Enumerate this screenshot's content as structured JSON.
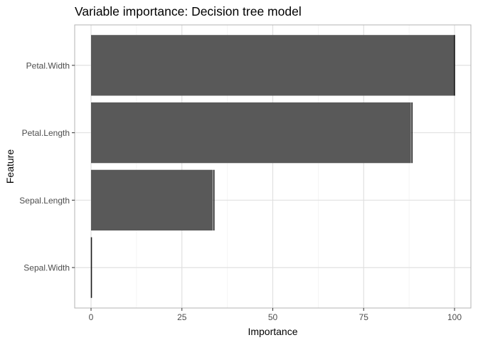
{
  "chart_data": {
    "type": "bar",
    "orientation": "horizontal",
    "title": "Variable importance: Decision tree model",
    "xlabel": "Importance",
    "ylabel": "Feature",
    "categories": [
      "Petal.Width",
      "Petal.Length",
      "Sepal.Length",
      "Sepal.Width"
    ],
    "values": [
      100,
      88,
      33.5,
      0
    ],
    "error_upper": [
      100,
      88.3,
      33.8,
      0.1
    ],
    "xlim": [
      -4.5,
      104.5
    ],
    "xticks": [
      0,
      25,
      50,
      75,
      100
    ],
    "xtick_labels": [
      "0",
      "25",
      "50",
      "75",
      "100"
    ],
    "grid": true,
    "legend": "none",
    "colors": {
      "bar": "#595959",
      "errorbar": "#1a1a1a",
      "panel_border": "#b3b3b3",
      "grid_major": "#dedede",
      "grid_minor": "#efefef",
      "text": "#000000",
      "tick_text": "#4d4d4d"
    }
  }
}
